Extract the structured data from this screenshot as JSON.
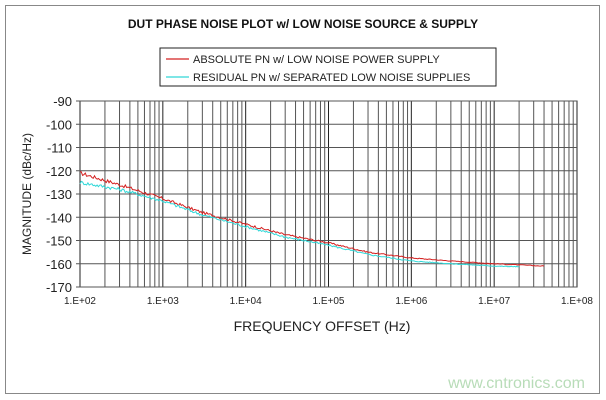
{
  "chart_data": {
    "type": "line",
    "title": "DUT PHASE NOISE PLOT w/ LOW NOISE SOURCE & SUPPLY",
    "xlabel": "FREQUENCY OFFSET (Hz)",
    "ylabel": "MAGNITUDE (dBc/Hz)",
    "xscale": "log",
    "xlim": [
      100,
      100000000
    ],
    "ylim": [
      -170,
      -90
    ],
    "x_ticks": [
      "1.E+02",
      "1.E+03",
      "1.E+04",
      "1.E+05",
      "1.E+06",
      "1.E+07",
      "1.E+08"
    ],
    "y_ticks": [
      "-90",
      "-100",
      "-110",
      "-120",
      "-130",
      "-140",
      "-150",
      "-160",
      "-170"
    ],
    "grid": true,
    "legend_position": "top",
    "series": [
      {
        "name": "ABSOLUTE PN w/ LOW NOISE POWER SUPPLY",
        "color": "#d42020",
        "x": [
          100,
          300,
          1000,
          3000,
          10000,
          30000,
          100000,
          300000,
          1000000,
          3000000,
          10000000,
          40000000
        ],
        "y": [
          -121,
          -126,
          -132,
          -138,
          -143,
          -147.5,
          -151,
          -155,
          -157.5,
          -158.8,
          -160,
          -161
        ]
      },
      {
        "name": "RESIDUAL PN w/ SEPARATED LOW NOISE SUPPLIES",
        "color": "#30d8d8",
        "x": [
          100,
          300,
          1000,
          3000,
          10000,
          30000,
          100000,
          300000,
          1000000,
          3000000,
          10000000,
          20000000
        ],
        "y": [
          -125,
          -128,
          -133,
          -139,
          -144,
          -148.5,
          -152,
          -156,
          -158.8,
          -160,
          -161,
          -161.3
        ]
      }
    ]
  },
  "watermark": "www.cntronics.com"
}
